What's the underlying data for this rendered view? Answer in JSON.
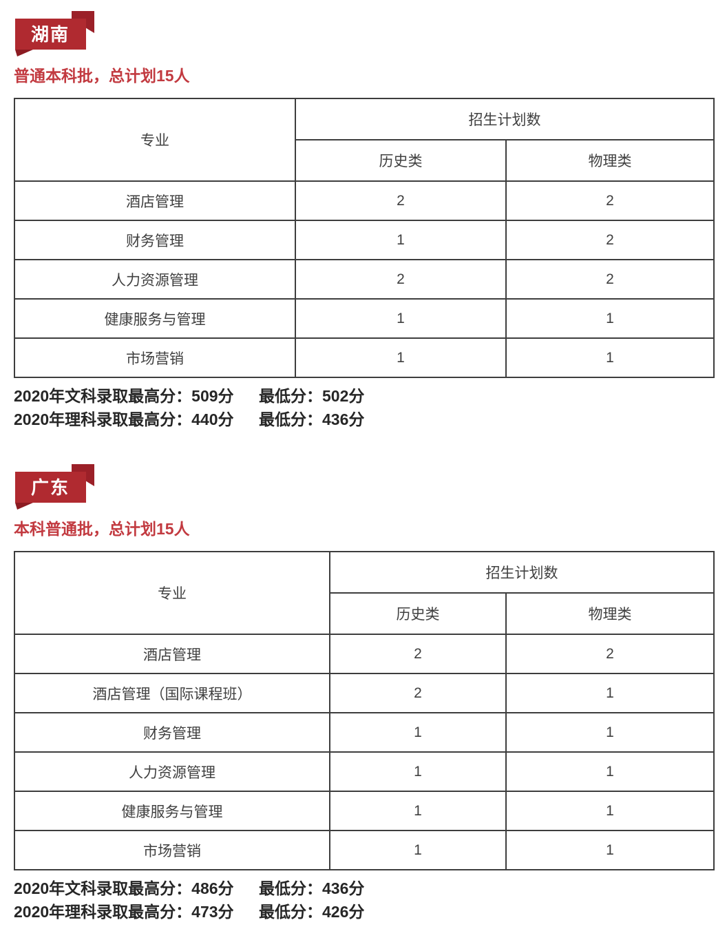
{
  "colors": {
    "band_red": "#b02a30",
    "fold_red": "#9b2028",
    "tail_red": "#8c1b22",
    "accent_red": "#c23a40",
    "table_border": "#3d3d3d",
    "cell_text": "#404040",
    "score_text": "#262626"
  },
  "sections": [
    {
      "banner_label": "湖南",
      "subtitle": "普通本科批，总计划15人",
      "table": {
        "col_major": "专业",
        "col_plan": "招生计划数",
        "col_history": "历史类",
        "col_physics": "物理类",
        "rows": [
          {
            "major": "酒店管理",
            "history": "2",
            "physics": "2"
          },
          {
            "major": "财务管理",
            "history": "1",
            "physics": "2"
          },
          {
            "major": "人力资源管理",
            "history": "2",
            "physics": "2"
          },
          {
            "major": "健康服务与管理",
            "history": "1",
            "physics": "1"
          },
          {
            "major": "市场营销",
            "history": "1",
            "physics": "1"
          }
        ]
      },
      "score_lines": [
        {
          "left": "2020年文科录取最高分：509分",
          "right": "最低分：502分"
        },
        {
          "left": "2020年理科录取最高分：440分",
          "right": "最低分：436分"
        }
      ]
    },
    {
      "banner_label": "广东",
      "subtitle": "本科普通批，总计划15人",
      "table": {
        "col_major": "专业",
        "col_plan": "招生计划数",
        "col_history": "历史类",
        "col_physics": "物理类",
        "rows": [
          {
            "major": "酒店管理",
            "history": "2",
            "physics": "2"
          },
          {
            "major": "酒店管理（国际课程班）",
            "history": "2",
            "physics": "1"
          },
          {
            "major": "财务管理",
            "history": "1",
            "physics": "1"
          },
          {
            "major": "人力资源管理",
            "history": "1",
            "physics": "1"
          },
          {
            "major": "健康服务与管理",
            "history": "1",
            "physics": "1"
          },
          {
            "major": "市场营销",
            "history": "1",
            "physics": "1"
          }
        ]
      },
      "score_lines": [
        {
          "left": "2020年文科录取最高分：486分",
          "right": "最低分：436分"
        },
        {
          "left": "2020年理科录取最高分：473分",
          "right": "最低分：426分"
        }
      ]
    }
  ]
}
